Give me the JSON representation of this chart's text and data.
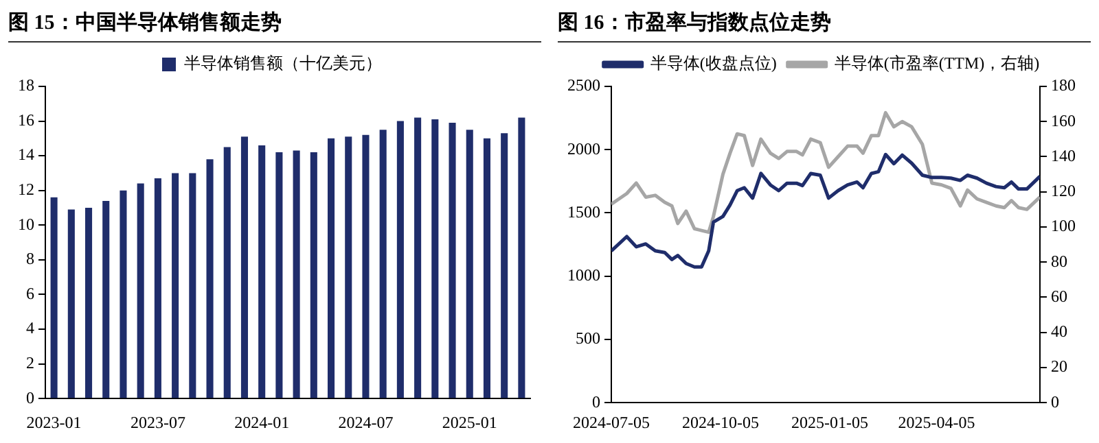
{
  "chart_data": [
    {
      "type": "bar",
      "title": "图 15：中国半导体销售额走势",
      "categories": [
        "2023-01",
        null,
        null,
        null,
        null,
        null,
        "2023-07",
        null,
        null,
        null,
        null,
        null,
        "2024-01",
        null,
        null,
        null,
        null,
        null,
        "2024-07",
        null,
        null,
        null,
        null,
        null,
        "2025-01",
        null,
        null,
        null
      ],
      "series": [
        {
          "name": "半导体销售额（十亿美元）",
          "color": "#1f2d6b",
          "values": [
            11.6,
            10.9,
            11.0,
            11.4,
            12.0,
            12.4,
            12.7,
            13.0,
            13.0,
            13.8,
            14.5,
            15.1,
            14.6,
            14.2,
            14.3,
            14.2,
            15.0,
            15.1,
            15.2,
            15.5,
            16.0,
            16.2,
            16.1,
            15.9,
            15.5,
            15.0,
            15.3,
            16.2
          ]
        }
      ],
      "ylim": [
        0,
        18
      ],
      "yticks": [
        0,
        2,
        4,
        6,
        8,
        10,
        12,
        14,
        16,
        18
      ],
      "grid": false,
      "legend": "top"
    },
    {
      "type": "line",
      "title": "图 16：市盈率与指数点位走势",
      "x": [
        "2024-07-05",
        "2024-07-18",
        "2024-07-26",
        "2024-08-03",
        "2024-08-11",
        "2024-08-19",
        "2024-08-25",
        "2024-08-30",
        "2024-09-06",
        "2024-09-13",
        "2024-09-19",
        "2024-09-25",
        "2024-09-29",
        "2024-10-07",
        "2024-10-13",
        "2024-10-19",
        "2024-10-25",
        "2024-11-01",
        "2024-11-08",
        "2024-11-16",
        "2024-11-23",
        "2024-11-30",
        "2024-12-08",
        "2024-12-13",
        "2024-12-20",
        "2024-12-28",
        "2025-01-04",
        "2025-01-12",
        "2025-01-20",
        "2025-01-28",
        "2025-02-02",
        "2025-02-09",
        "2025-02-15",
        "2025-02-21",
        "2025-02-28",
        "2025-03-07",
        "2025-03-15",
        "2025-03-24",
        "2025-04-01",
        "2025-04-09",
        "2025-04-17",
        "2025-04-25",
        "2025-05-01",
        "2025-05-09",
        "2025-05-17",
        "2025-05-25",
        "2025-06-01",
        "2025-06-07",
        "2025-06-13",
        "2025-06-20",
        "2025-07-01"
      ],
      "series": [
        {
          "name": "半导体(收盘点位)",
          "color": "#1f2d6b",
          "values": [
            1200,
            1313,
            1232,
            1255,
            1200,
            1187,
            1132,
            1164,
            1100,
            1073,
            1073,
            1200,
            1427,
            1472,
            1563,
            1676,
            1699,
            1617,
            1812,
            1721,
            1676,
            1735,
            1735,
            1716,
            1812,
            1798,
            1617,
            1676,
            1721,
            1744,
            1699,
            1812,
            1826,
            1962,
            1889,
            1957,
            1893,
            1798,
            1780,
            1780,
            1775,
            1757,
            1798,
            1775,
            1735,
            1708,
            1699,
            1744,
            1689,
            1689,
            1789
          ]
        },
        {
          "name": "半导体(市盈率(TTM)，右轴)",
          "color": "#a6a6a6",
          "axis": "y2",
          "values": [
            113,
            119,
            125,
            117,
            118,
            114,
            112,
            102,
            109,
            99,
            98,
            97,
            106,
            130,
            142,
            153,
            152,
            135,
            150,
            142,
            139,
            143,
            143,
            141,
            150,
            148,
            134,
            140,
            146,
            146,
            142,
            152,
            152,
            165,
            157,
            160,
            157,
            147,
            125,
            124,
            122,
            112,
            121,
            116,
            114,
            112,
            111,
            115,
            111,
            110,
            117
          ]
        }
      ],
      "xlim": [
        "2024-07-05",
        "2025-07-01"
      ],
      "xticks": [
        "2024-07-05",
        "2024-10-05",
        "2025-01-05",
        "2025-04-05"
      ],
      "ylim": [
        0,
        2500
      ],
      "yticks": [
        0,
        500,
        1000,
        1500,
        2000,
        2500
      ],
      "y2lim": [
        0,
        180
      ],
      "y2ticks": [
        0,
        20,
        40,
        60,
        80,
        100,
        120,
        140,
        160,
        180
      ],
      "grid": false,
      "legend": "top",
      "marker": "none",
      "line_style": "solid"
    }
  ]
}
